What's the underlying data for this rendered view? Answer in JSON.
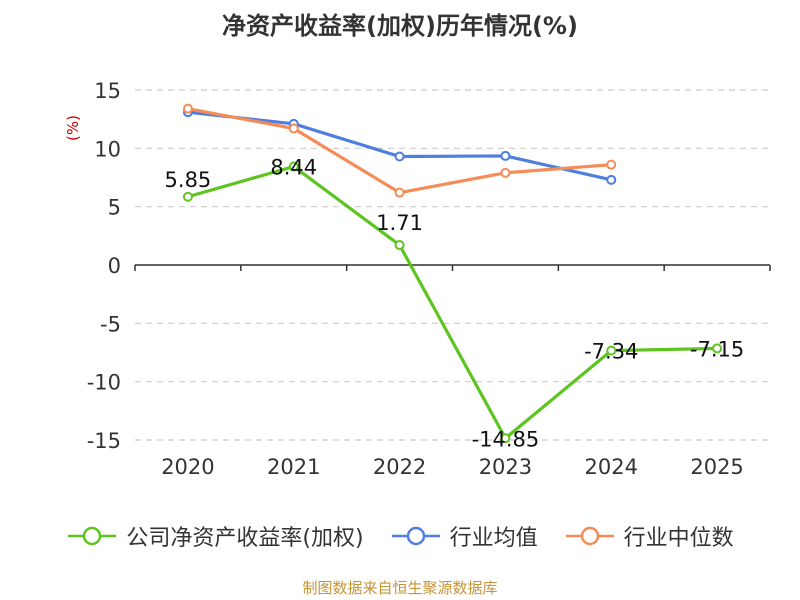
{
  "chart_data": {
    "type": "line",
    "title": "净资产收益率(加权)历年情况(%)",
    "ylabel": "(%)",
    "xlabel": "",
    "categories": [
      "2020",
      "2021",
      "2022",
      "2023",
      "2024",
      "2025"
    ],
    "ylim": [
      -15,
      15
    ],
    "yticks": [
      15,
      10,
      5,
      0,
      -5,
      -10,
      -15
    ],
    "grid": true,
    "legend_position": "bottom",
    "series": [
      {
        "name": "公司净资产收益率(加权)",
        "color": "#5ec41f",
        "values": [
          5.85,
          8.44,
          1.71,
          -14.85,
          -7.34,
          -7.15
        ],
        "labels": [
          "5.85",
          "8.44",
          "1.71",
          "-14.85",
          "-7.34",
          "-7.15"
        ]
      },
      {
        "name": "行业均值",
        "color": "#4f7fde",
        "values": [
          13.1,
          12.1,
          9.3,
          9.35,
          7.3,
          null
        ]
      },
      {
        "name": "行业中位数",
        "color": "#f58c57",
        "values": [
          13.4,
          11.7,
          6.2,
          7.9,
          8.6,
          null
        ]
      }
    ],
    "source": "制图数据来自恒生聚源数据库"
  }
}
